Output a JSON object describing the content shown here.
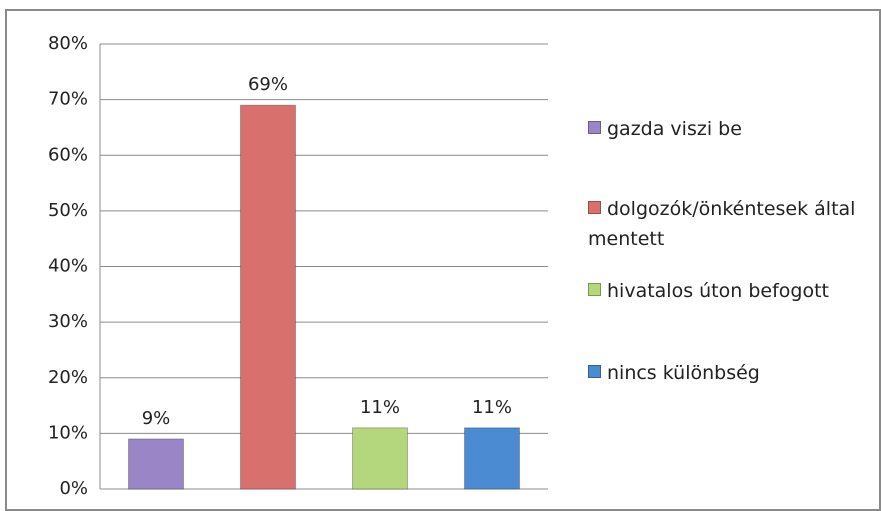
{
  "chart_data": {
    "type": "bar",
    "series": [
      {
        "name": "gazda viszi be",
        "color": "#9a86c6",
        "values": [
          9
        ],
        "value_labels": [
          "9%"
        ]
      },
      {
        "name": "dolgozók/önkéntesek által mentett",
        "color": "#d8716e",
        "values": [
          69
        ],
        "value_labels": [
          "69%"
        ]
      },
      {
        "name": "hivatalos úton befogott",
        "color": "#b4d67c",
        "values": [
          11
        ],
        "value_labels": [
          "11%"
        ]
      },
      {
        "name": "nincs különbség",
        "color": "#4b8bd2",
        "values": [
          11
        ],
        "value_labels": [
          "11%"
        ]
      }
    ],
    "ylim": [
      0,
      80
    ],
    "yticks": [
      {
        "value": 0,
        "label": "0%"
      },
      {
        "value": 10,
        "label": "10%"
      },
      {
        "value": 20,
        "label": "20%"
      },
      {
        "value": 30,
        "label": "30%"
      },
      {
        "value": 40,
        "label": "40%"
      },
      {
        "value": 50,
        "label": "50%"
      },
      {
        "value": 60,
        "label": "60%"
      },
      {
        "value": 70,
        "label": "70%"
      },
      {
        "value": 80,
        "label": "80%"
      }
    ],
    "grid": true,
    "legend": "right"
  }
}
